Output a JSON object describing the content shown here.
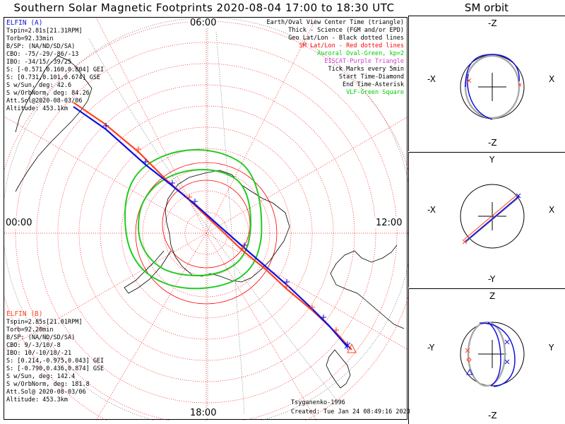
{
  "title": "Southern Solar Magnetic Footprints 2020-08-04 17:00 to 18:30 UTC",
  "sm_title": "SM orbit",
  "hour_labels": {
    "top": "06:00",
    "left": "00:00",
    "right": "12:00",
    "bottom": "18:00"
  },
  "elfin_a": {
    "name": "ELFIN (A)",
    "lines": [
      "Tspin=2.81s[21.31RPM]",
      "Torb=92.33min",
      "B/SP: (NA/ND/SD/SA)",
      "CBO: -75/-29/-86/-13",
      "IBO: -34/15/-39/25",
      "S: [-0.571,0.160,0.804] GEI",
      "S: [0.731,0.101,0.674] GSE",
      "S w/Sun, deg: 42.6",
      "S w/OrbNorm, deg: 84.26",
      "Att.Sol@2020-08-03/06",
      "Altitude: 453.1km"
    ],
    "color": "#1010e0"
  },
  "elfin_b": {
    "name": "ELFIN (B)",
    "lines": [
      "Tspin=2.85s[21.01RPM]",
      "Torb=92.20min",
      "B/SP: (NA/ND/SD/SA)",
      "CBO: 9/-3/10/-8",
      "IBO: 10/-10/18/-21",
      "S: [0.214,-0.975,0.043] GEI",
      "S: [-0.790,0.436,0.874] GSE",
      "S w/Sun, deg: 142.4",
      "S w/OrbNorm, deg: 181.8",
      "Att.Sol@ 2020-08-03/06",
      "Altitude: 453.3km"
    ],
    "color": "#ff4422"
  },
  "legend": [
    {
      "text": "Earth/Oval View Center Time (triangle)",
      "color": "#000000"
    },
    {
      "text": "Thick - Science (FGM and/or EPD)",
      "color": "#000000"
    },
    {
      "text": "Geo Lat/Lon - Black dotted lines",
      "color": "#000000"
    },
    {
      "text": "SM Lat/Lon - Red dotted lines",
      "color": "#ff0000"
    },
    {
      "text": "Auroral Oval-Green, kp=2",
      "color": "#00cc00"
    },
    {
      "text": "EISCAT-Purple Triangle",
      "color": "#cc44cc"
    },
    {
      "text": "Tick Marks every 5min",
      "color": "#000000"
    },
    {
      "text": "Start Time-Diamond",
      "color": "#000000"
    },
    {
      "text": "End Time-Asterisk",
      "color": "#000000"
    },
    {
      "text": "VLF-Green Square",
      "color": "#00cc00"
    }
  ],
  "credit": "Tsyganenko-1996",
  "created": "Created: Tue Jan 24 08:49:16 2023",
  "sm_panels": [
    {
      "top": "-Z",
      "bottom": "-Z",
      "left": "-X",
      "right": "X"
    },
    {
      "top": "Y",
      "bottom": "-Y",
      "left": "-X",
      "right": "X"
    },
    {
      "top": "Z",
      "bottom": "-Z",
      "left": "-Y",
      "right": "Y"
    }
  ],
  "colors": {
    "grid_sm": "#ff0000",
    "grid_geo": "#555555",
    "oval": "#22cc22",
    "coast": "#000000"
  }
}
